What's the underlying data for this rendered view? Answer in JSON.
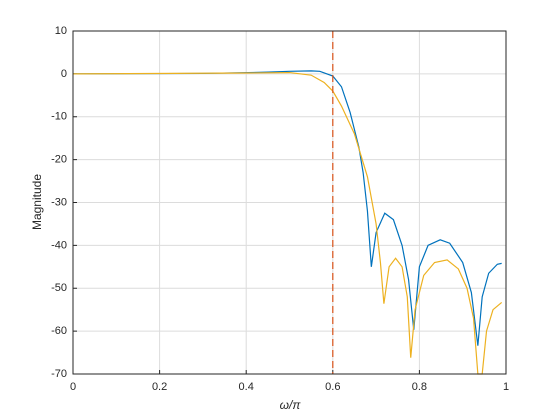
{
  "chart_data": {
    "type": "line",
    "xlabel": "ω/π",
    "ylabel": "Magnitude",
    "xlim": [
      0,
      1
    ],
    "ylim": [
      -70,
      10
    ],
    "xticks": [
      0,
      0.2,
      0.4,
      0.6,
      0.8,
      1
    ],
    "yticks": [
      10,
      0,
      -10,
      -20,
      -30,
      -40,
      -50,
      -60,
      -70
    ],
    "grid": true,
    "vline": {
      "x": 0.6,
      "color": "#D95319"
    },
    "series": [
      {
        "color": "#0072BD",
        "x": [
          0,
          0.3,
          0.45,
          0.5,
          0.55,
          0.57,
          0.6,
          0.62,
          0.64,
          0.66,
          0.67,
          0.68,
          0.689,
          0.7,
          0.72,
          0.74,
          0.76,
          0.775,
          0.787,
          0.8,
          0.82,
          0.848,
          0.87,
          0.9,
          0.92,
          0.935,
          0.945,
          0.96,
          0.98,
          0.99
        ],
        "values": [
          0,
          0.1,
          0.4,
          0.6,
          0.7,
          0.6,
          -0.5,
          -3,
          -9,
          -17,
          -23,
          -32,
          -45,
          -37,
          -32.5,
          -34,
          -40,
          -48,
          -59.7,
          -45,
          -40,
          -38.7,
          -39.5,
          -44,
          -51,
          -63.4,
          -52,
          -46.5,
          -44.4,
          -44.2
        ]
      },
      {
        "color": "#EDB120",
        "x": [
          0,
          0.4,
          0.5,
          0.55,
          0.58,
          0.6,
          0.62,
          0.65,
          0.68,
          0.7,
          0.71,
          0.718,
          0.73,
          0.745,
          0.76,
          0.772,
          0.78,
          0.79,
          0.81,
          0.835,
          0.864,
          0.89,
          0.91,
          0.925,
          0.935,
          0.945,
          0.955,
          0.97,
          0.99
        ],
        "values": [
          0,
          0.2,
          0.3,
          -0.3,
          -2,
          -4,
          -7.5,
          -14,
          -24,
          -35,
          -44,
          -53.6,
          -45,
          -43,
          -45,
          -52,
          -66.2,
          -55,
          -47,
          -44,
          -43.4,
          -45.5,
          -50,
          -57,
          -70,
          -70,
          -60,
          -55,
          -53.3
        ]
      }
    ]
  }
}
